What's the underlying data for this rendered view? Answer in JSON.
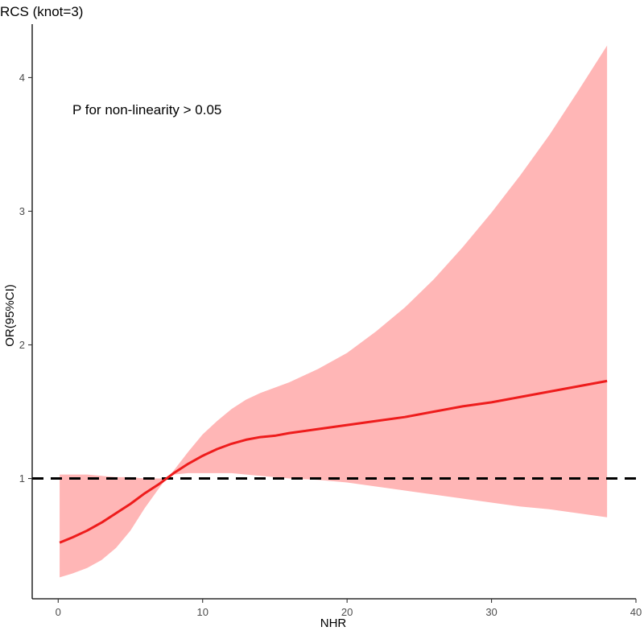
{
  "chart_data": {
    "type": "line",
    "title": "RCS (knot=3)",
    "xlabel": "NHR",
    "ylabel": "OR(95%CI)",
    "xlim": [
      -1.8,
      40
    ],
    "ylim": [
      0.1,
      4.4
    ],
    "xticks": [
      0,
      10,
      20,
      30,
      40
    ],
    "yticks": [
      1,
      2,
      3,
      4
    ],
    "grid": false,
    "annotation": "P for non-linearity > 0.05",
    "reference_line": {
      "y": 1,
      "style": "dashed",
      "color": "#000000"
    },
    "series": [
      {
        "color": "#ee1c1c",
        "band_color": "#ffb6b6",
        "x": [
          0.1,
          1,
          2,
          3,
          4,
          5,
          6,
          7,
          7.5,
          8,
          9,
          10,
          11,
          12,
          13,
          14,
          15,
          16,
          18,
          20,
          22,
          24,
          26,
          28,
          30,
          32,
          34,
          36,
          38
        ],
        "y": [
          0.52,
          0.56,
          0.61,
          0.67,
          0.74,
          0.81,
          0.89,
          0.96,
          1.0,
          1.04,
          1.11,
          1.17,
          1.22,
          1.26,
          1.29,
          1.31,
          1.32,
          1.34,
          1.37,
          1.4,
          1.43,
          1.46,
          1.5,
          1.54,
          1.57,
          1.61,
          1.65,
          1.69,
          1.73
        ],
        "lower": [
          0.26,
          0.29,
          0.33,
          0.39,
          0.48,
          0.61,
          0.78,
          0.93,
          1.0,
          1.03,
          1.04,
          1.04,
          1.04,
          1.04,
          1.03,
          1.02,
          1.01,
          1.0,
          0.99,
          0.97,
          0.94,
          0.91,
          0.88,
          0.85,
          0.82,
          0.79,
          0.77,
          0.74,
          0.71
        ],
        "upper": [
          1.03,
          1.03,
          1.03,
          1.02,
          1.01,
          1.01,
          1.0,
          1.0,
          1.0,
          1.06,
          1.2,
          1.33,
          1.43,
          1.52,
          1.59,
          1.64,
          1.68,
          1.72,
          1.82,
          1.94,
          2.1,
          2.28,
          2.49,
          2.73,
          2.99,
          3.27,
          3.57,
          3.9,
          4.24
        ]
      }
    ]
  }
}
